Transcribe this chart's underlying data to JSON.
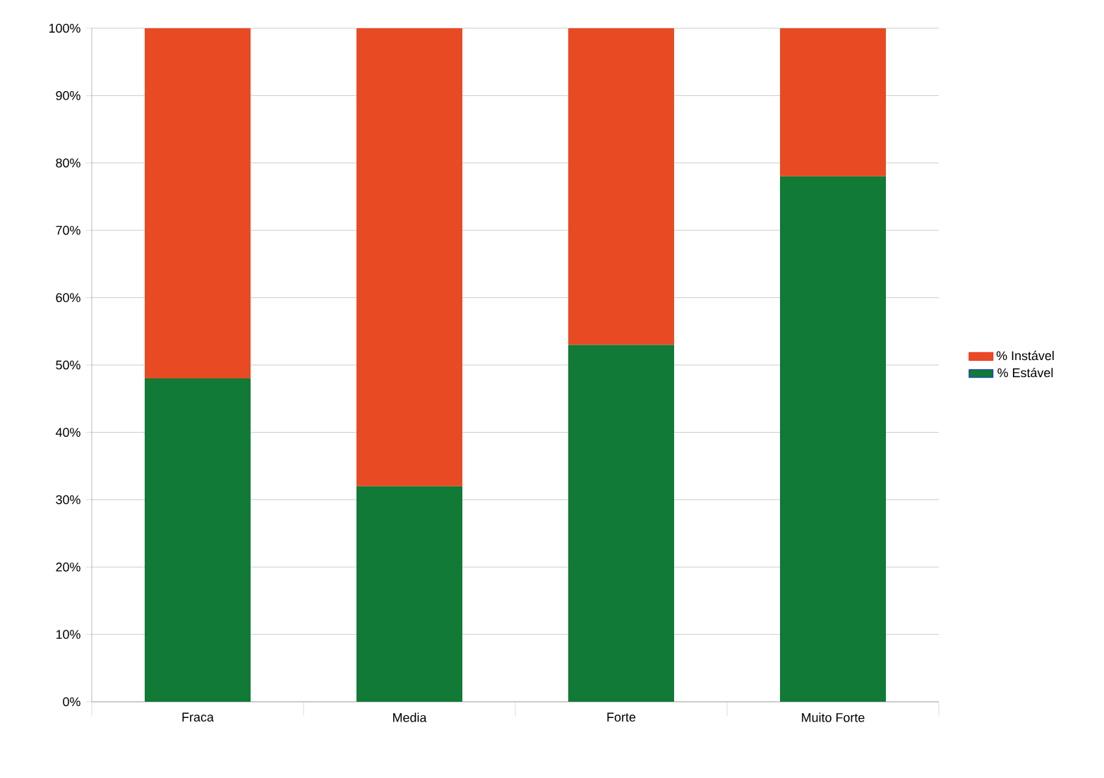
{
  "chart_data": {
    "type": "bar",
    "stacked": true,
    "categories": [
      "Fraca",
      "Media",
      "Forte",
      "Muito Forte"
    ],
    "series": [
      {
        "name": "% Estável",
        "color": "#107a36",
        "values": [
          48,
          32,
          53,
          78
        ]
      },
      {
        "name": "% Instável",
        "color": "#e84b24",
        "values": [
          52,
          68,
          47,
          22
        ]
      }
    ],
    "ylim": [
      0,
      100
    ],
    "yticks": [
      {
        "value": 0,
        "label": "0%"
      },
      {
        "value": 10,
        "label": "10%"
      },
      {
        "value": 20,
        "label": "20%"
      },
      {
        "value": 30,
        "label": "30%"
      },
      {
        "value": 40,
        "label": "40%"
      },
      {
        "value": 50,
        "label": "50%"
      },
      {
        "value": 60,
        "label": "60%"
      },
      {
        "value": 70,
        "label": "70%"
      },
      {
        "value": 80,
        "label": "80%"
      },
      {
        "value": 90,
        "label": "90%"
      },
      {
        "value": 100,
        "label": "100%"
      }
    ],
    "grid": "y",
    "legend": "right"
  }
}
